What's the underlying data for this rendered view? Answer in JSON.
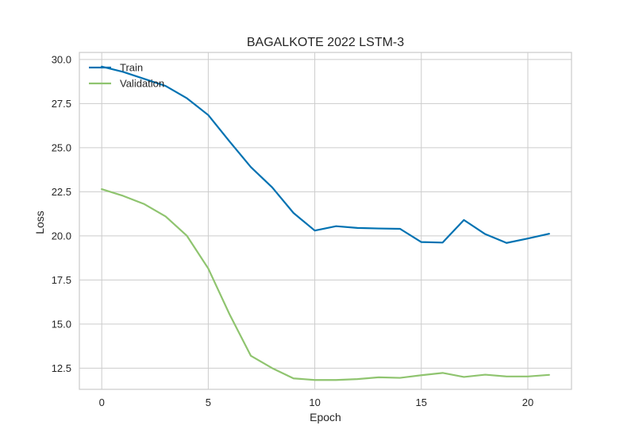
{
  "chart_data": {
    "type": "line",
    "title": "BAGALKOTE 2022 LSTM-3",
    "xlabel": "Epoch",
    "ylabel": "Loss",
    "xlim": [
      -1.05,
      22.05
    ],
    "ylim": [
      11.3,
      30.4
    ],
    "xticks": [
      0,
      5,
      10,
      15,
      20
    ],
    "yticks": [
      12.5,
      15.0,
      17.5,
      20.0,
      22.5,
      25.0,
      27.5,
      30.0
    ],
    "ytick_labels": [
      "12.5",
      "15.0",
      "17.5",
      "20.0",
      "22.5",
      "25.0",
      "27.5",
      "30.0"
    ],
    "grid": true,
    "legend_position": "upper-left",
    "x": [
      0,
      1,
      2,
      3,
      4,
      5,
      6,
      7,
      8,
      9,
      10,
      11,
      12,
      13,
      14,
      15,
      16,
      17,
      18,
      19,
      20,
      21
    ],
    "series": [
      {
        "name": "Train",
        "color": "#0072b2",
        "values": [
          29.6,
          29.3,
          28.9,
          28.5,
          27.8,
          26.85,
          25.35,
          23.9,
          22.75,
          21.3,
          20.3,
          20.55,
          20.45,
          20.42,
          20.4,
          19.65,
          19.62,
          20.9,
          20.1,
          19.6,
          19.85,
          20.12
        ]
      },
      {
        "name": "Validation",
        "color": "#8fc46f",
        "values": [
          22.65,
          22.27,
          21.8,
          21.1,
          20.0,
          18.15,
          15.55,
          13.2,
          12.5,
          11.92,
          11.83,
          11.83,
          11.88,
          11.98,
          11.95,
          12.1,
          12.23,
          12.0,
          12.13,
          12.03,
          12.03,
          12.12
        ]
      }
    ]
  }
}
